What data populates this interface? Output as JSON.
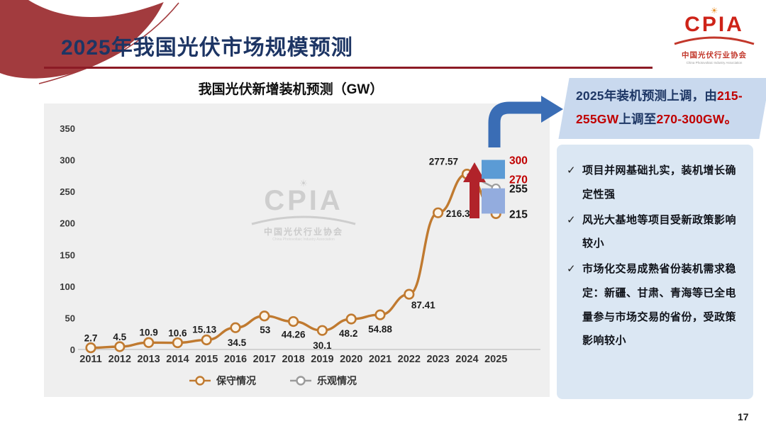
{
  "header": {
    "title": "2025年我国光伏市场规模预测"
  },
  "cpia": {
    "acronym": "CPIA",
    "cn": "中国光伏行业协会",
    "en": "China Photovoltaic Industry Association",
    "sun_icon": "☀"
  },
  "callout": {
    "segments": [
      {
        "text": "2025年装机预测上调，由",
        "red": false
      },
      {
        "text": "215-255GW",
        "red": true
      },
      {
        "text": "上调至",
        "red": false
      },
      {
        "text": "270-300GW。",
        "red": true
      }
    ]
  },
  "points_panel": {
    "check": "✓",
    "items": [
      "项目并网基础扎实，装机增长确定性强",
      "风光大基地等项目受新政策影响较小",
      "市场化交易成熟省份装机需求稳定：新疆、甘肃、青海等已全电量参与市场交易的省份，受政策影响较小"
    ]
  },
  "chart_data": {
    "type": "line",
    "title": "我国光伏新增装机预测（GW）",
    "categories": [
      "2011",
      "2012",
      "2013",
      "2014",
      "2015",
      "2016",
      "2017",
      "2018",
      "2019",
      "2020",
      "2021",
      "2022",
      "2023",
      "2024",
      "2025"
    ],
    "series": [
      {
        "name": "保守情况",
        "color": "#C07A30",
        "values": [
          2.7,
          4.5,
          10.9,
          10.6,
          15.13,
          34.5,
          53,
          44.26,
          30.1,
          48.2,
          54.88,
          87.41,
          216.3,
          277.57,
          215
        ]
      },
      {
        "name": "乐观情况",
        "color": "#9B9B9B",
        "values": [
          null,
          null,
          null,
          null,
          null,
          null,
          null,
          null,
          null,
          null,
          null,
          null,
          null,
          277.57,
          255
        ]
      }
    ],
    "xlabel": "",
    "ylabel": "",
    "ylim": [
      0,
      350
    ],
    "ytick_step": 50,
    "grid": false,
    "legend_position": "bottom",
    "annotations": {
      "arrow_color": "#B1232A",
      "new_range": {
        "low": 270,
        "high": 300,
        "color": "#5B9BD5",
        "label_color": "#C00000"
      },
      "old_range": {
        "low": 215,
        "high": 255,
        "color": "#93ACDE",
        "label_color": "#141414"
      }
    }
  },
  "page": {
    "number": "17"
  }
}
